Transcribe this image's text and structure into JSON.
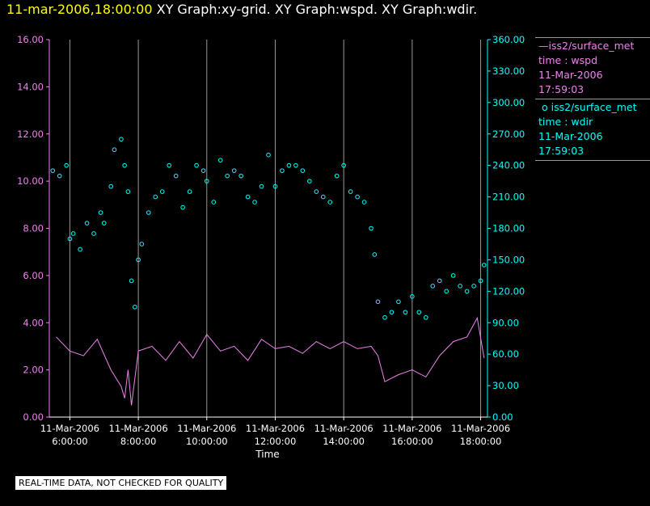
{
  "header": {
    "timestamp": "11-mar-2006,18:00:00",
    "titles": "XY Graph:xy-grid.  XY Graph:wspd.  XY Graph:wdir."
  },
  "legend": {
    "series1": {
      "name": "iss2/surface_met",
      "label": "time : wspd",
      "date": "11-Mar-2006",
      "time": "17:59:03"
    },
    "series2": {
      "name": "iss2/surface_met",
      "label": "time : wdir",
      "date": "11-Mar-2006",
      "time": "17:59:03"
    }
  },
  "footer": {
    "qc_label": "REAL-TIME DATA, NOT CHECKED FOR QUALITY"
  },
  "chart_data": {
    "type": "line",
    "xlabel": "Time",
    "x_ticks": [
      {
        "hour": 6,
        "date": "11-Mar-2006",
        "time": "6:00:00"
      },
      {
        "hour": 8,
        "date": "11-Mar-2006",
        "time": "8:00:00"
      },
      {
        "hour": 10,
        "date": "11-Mar-2006",
        "time": "10:00:00"
      },
      {
        "hour": 12,
        "date": "11-Mar-2006",
        "time": "12:00:00"
      },
      {
        "hour": 14,
        "date": "11-Mar-2006",
        "time": "14:00:00"
      },
      {
        "hour": 16,
        "date": "11-Mar-2006",
        "time": "16:00:00"
      },
      {
        "hour": 18,
        "date": "11-Mar-2006",
        "time": "18:00:00"
      }
    ],
    "xlim_hours": [
      5.4,
      18.2
    ],
    "grid": "vertical",
    "left_axis": {
      "ylim": [
        0,
        16
      ],
      "ticks": [
        "0.00",
        "2.00",
        "4.00",
        "6.00",
        "8.00",
        "10.00",
        "12.00",
        "14.00",
        "16.00"
      ],
      "color": "#ee82ee"
    },
    "right_axis": {
      "ylim": [
        0,
        360
      ],
      "ticks": [
        "0.00",
        "30.00",
        "60.00",
        "90.00",
        "120.00",
        "150.00",
        "180.00",
        "210.00",
        "240.00",
        "270.00",
        "300.00",
        "330.00",
        "360.00"
      ],
      "color": "#00ffff"
    },
    "series": [
      {
        "name": "wspd",
        "axis": "left",
        "style": "line",
        "color": "#ee82ee",
        "x_hours": [
          5.6,
          6.0,
          6.4,
          6.8,
          7.2,
          7.5,
          7.6,
          7.7,
          7.8,
          8.0,
          8.4,
          8.8,
          9.2,
          9.6,
          10.0,
          10.4,
          10.8,
          11.2,
          11.6,
          12.0,
          12.4,
          12.8,
          13.2,
          13.6,
          14.0,
          14.4,
          14.8,
          15.0,
          15.2,
          15.6,
          16.0,
          16.4,
          16.8,
          17.2,
          17.6,
          17.9,
          18.1
        ],
        "values": [
          3.4,
          2.8,
          2.6,
          3.3,
          2.0,
          1.3,
          0.8,
          2.0,
          0.5,
          2.8,
          3.0,
          2.4,
          3.2,
          2.5,
          3.5,
          2.8,
          3.0,
          2.4,
          3.3,
          2.9,
          3.0,
          2.7,
          3.2,
          2.9,
          3.2,
          2.9,
          3.0,
          2.6,
          1.5,
          1.8,
          2.0,
          1.7,
          2.6,
          3.2,
          3.4,
          4.2,
          2.5
        ]
      },
      {
        "name": "wdir",
        "axis": "right",
        "style": "markers",
        "color": "#00ffff",
        "x_hours": [
          5.5,
          5.7,
          5.9,
          6.0,
          6.1,
          6.3,
          6.5,
          6.7,
          6.9,
          7.0,
          7.2,
          7.3,
          7.5,
          7.6,
          7.7,
          7.8,
          7.9,
          8.0,
          8.1,
          8.3,
          8.5,
          8.7,
          8.9,
          9.1,
          9.3,
          9.5,
          9.7,
          9.9,
          10.0,
          10.2,
          10.4,
          10.6,
          10.8,
          11.0,
          11.2,
          11.4,
          11.6,
          11.8,
          12.0,
          12.2,
          12.4,
          12.6,
          12.8,
          13.0,
          13.2,
          13.4,
          13.6,
          13.8,
          14.0,
          14.2,
          14.4,
          14.6,
          14.8,
          14.9,
          15.0,
          15.2,
          15.4,
          15.6,
          15.8,
          16.0,
          16.2,
          16.4,
          16.6,
          16.8,
          17.0,
          17.2,
          17.4,
          17.6,
          17.8,
          18.0,
          18.1
        ],
        "values": [
          235,
          230,
          240,
          170,
          175,
          160,
          185,
          175,
          195,
          185,
          220,
          255,
          265,
          240,
          215,
          130,
          105,
          150,
          165,
          195,
          210,
          215,
          240,
          230,
          200,
          215,
          240,
          235,
          225,
          205,
          245,
          230,
          235,
          230,
          210,
          205,
          220,
          250,
          220,
          235,
          240,
          240,
          235,
          225,
          215,
          210,
          205,
          230,
          240,
          215,
          210,
          205,
          180,
          155,
          110,
          95,
          100,
          110,
          100,
          115,
          100,
          95,
          125,
          130,
          120,
          135,
          125,
          120,
          125,
          130,
          145
        ]
      }
    ]
  }
}
